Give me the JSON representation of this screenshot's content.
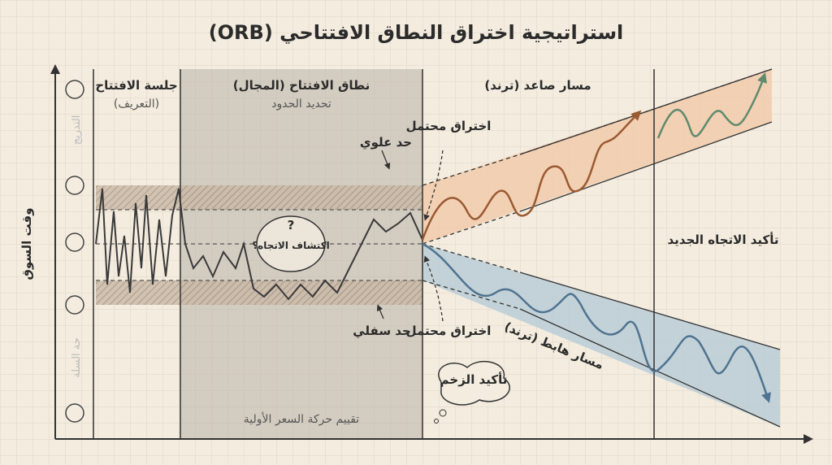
{
  "header": {
    "title": "استراتيجية اختراق النطاق الافتتاحي (ORB)"
  },
  "axis": {
    "y_label": "وقت السوق",
    "faded_labels": [
      "التدريج",
      "حة السلة"
    ]
  },
  "sections": [
    {
      "title": "جلسة الافتتاح",
      "subtitle": "(التعريف)"
    },
    {
      "title": "نطاق الافتتاح (المجال)",
      "subtitle": "تحديد الحدود",
      "footer": "تقييم حركة السعر الأولية"
    },
    {
      "title": "مسار صاعد (ترند)"
    },
    {
      "title": "تأكيد الاتجاه الجديد"
    }
  ],
  "labels": {
    "upper_bound": "حد علوي",
    "lower_bound": "حد سفلي",
    "question_mark": "?",
    "discovery": "اكتشاف الاتجاه؟",
    "breakout_up": "اختراق محتمل",
    "breakout_down": "اختراق محتمل",
    "down_trend": "مسار هابط (ترند)",
    "momentum": "تأكيد الزخم"
  }
}
